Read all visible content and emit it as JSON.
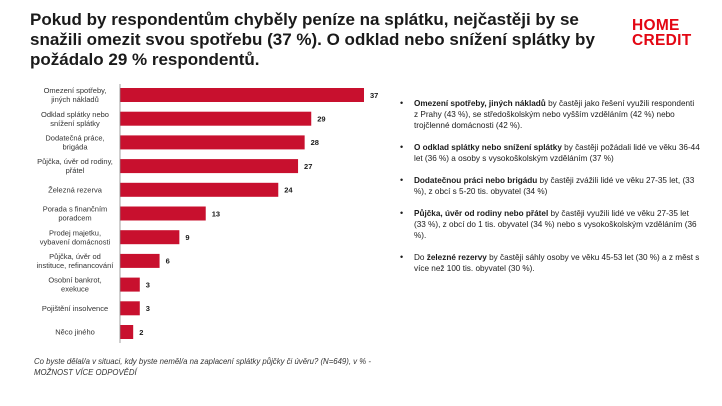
{
  "title": "Pokud by respondentům chyběly peníze na splátku, nejčastěji by se snažili omezit svou spotřebu (37 %). O odklad nebo snížení splátky by požádalo 29 % respondentů.",
  "logo": {
    "line1": "HOME",
    "line2": "CREDIT"
  },
  "colors": {
    "bar": "#c8102e",
    "logo": "#e30613"
  },
  "chart_data": {
    "type": "bar",
    "orientation": "horizontal",
    "categories": [
      [
        "Omezení spotřeby,",
        "jiných nákladů"
      ],
      [
        "Odklad splátky nebo",
        "snížení splátky"
      ],
      [
        "Dodatečná práce,",
        "brigáda"
      ],
      [
        "Půjčka, úvěr od rodiny,",
        "přátel"
      ],
      [
        "Železná rezerva"
      ],
      [
        "Porada s finančním",
        "poradcem"
      ],
      [
        "Prodej majetku,",
        "vybavení domácnosti"
      ],
      [
        "Půjčka, úvěr od",
        "instituce, refinancování"
      ],
      [
        "Osobní bankrot,",
        "exekuce"
      ],
      [
        "Pojištění insolvence"
      ],
      [
        "Něco jiného"
      ]
    ],
    "values": [
      37,
      29,
      28,
      27,
      24,
      13,
      9,
      6,
      3,
      3,
      2
    ],
    "xlim": [
      0,
      37
    ],
    "grid": false,
    "legend": "none"
  },
  "bullets": [
    {
      "bold": "Omezení spotřeby, jiných nákladů",
      "text": " by častěji jako řešení využili respondenti z Prahy (43 %), se středoškolským nebo vyšším vzděláním (42 %) nebo trojčlenné domácnosti (42 %)."
    },
    {
      "bold": "O odklad splátky nebo snížení splátky",
      "text": " by častěji požádali lidé ve věku 36-44 let (36 %) a osoby s vysokoškolským vzděláním (37 %)"
    },
    {
      "bold": "Dodatečnou práci nebo brigádu",
      "text": " by častěji zvážili lidé ve věku 27-35 let, (33 %), z obcí s 5-20 tis. obyvatel (34 %)"
    },
    {
      "bold": "Půjčka, úvěr od rodiny nebo přátel",
      "text": " by častěji využili lidé ve věku 27-35 let (33 %), z obcí do 1 tis. obyvatel (34 %) nebo s vysokoškolským vzděláním (36 %)."
    },
    {
      "pre": "Do ",
      "bold": "železné rezervy",
      "text": " by častěji sáhly osoby ve věku 45-53 let (30 %) a z měst s více než 100 tis. obyvatel (30 %)."
    }
  ],
  "footnote": "Co byste dělal/a v situaci, kdy byste neměl/a na zaplacení splátky půjčky či úvěru? (N=649), v % - MOŽNOST VÍCE ODPOVĚDÍ"
}
